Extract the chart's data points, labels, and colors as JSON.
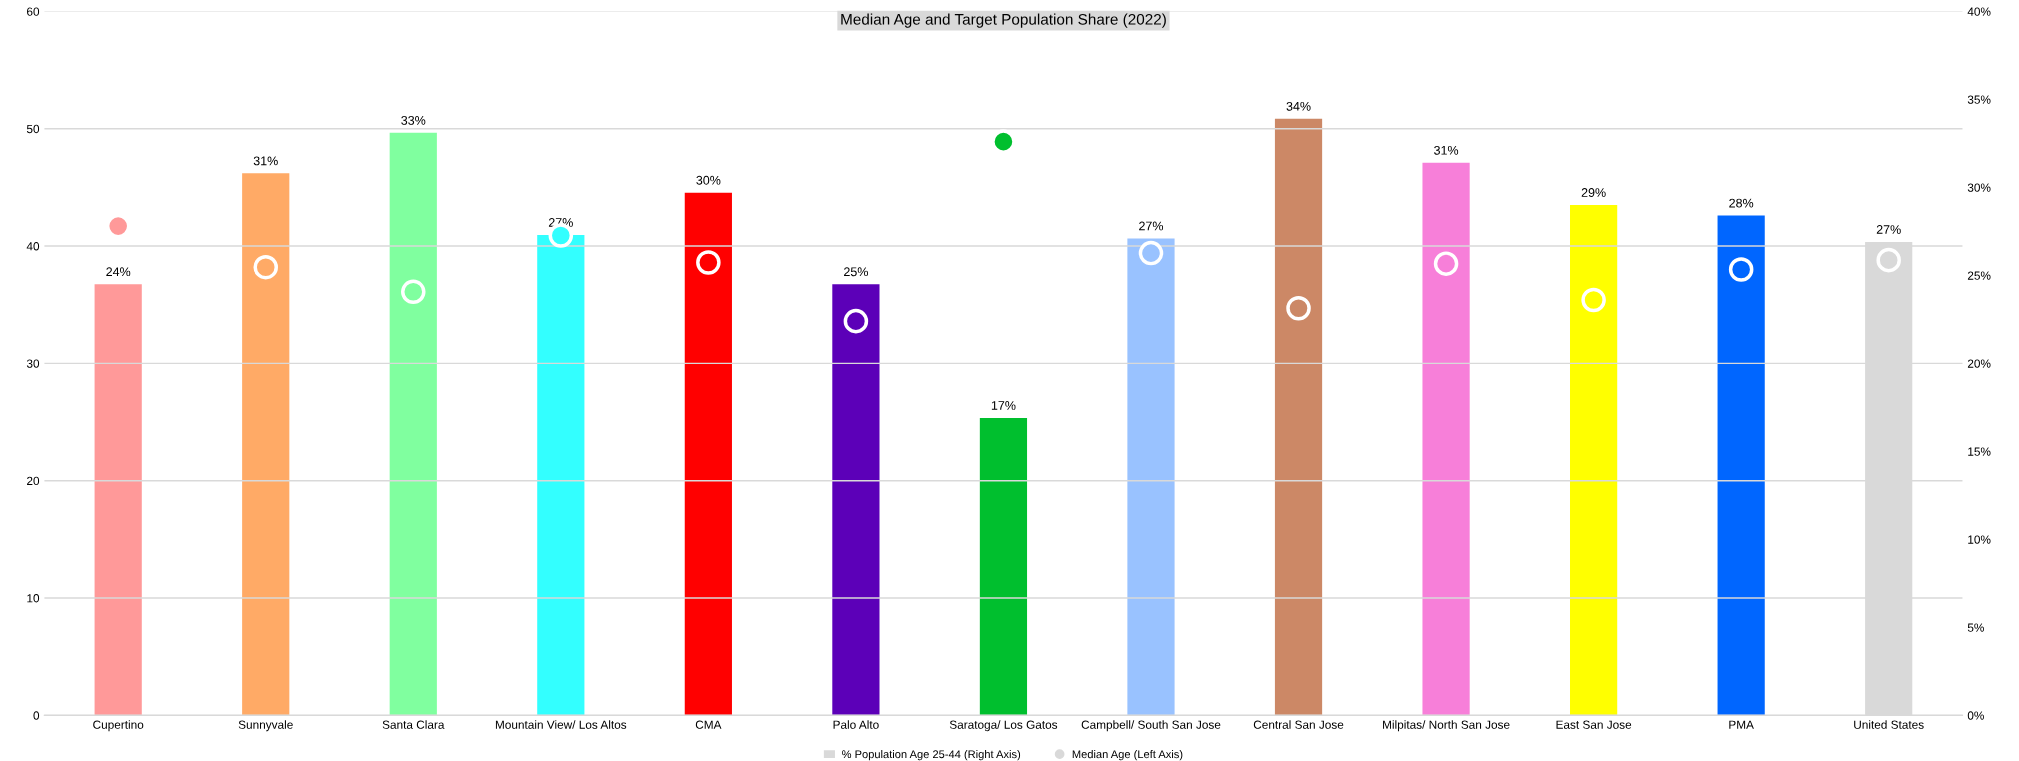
{
  "chart_data": {
    "type": "bar",
    "title": "Median Age and Target Population Share (2022)",
    "categories": [
      "Cupertino",
      "Sunnyvale",
      "Santa Clara",
      "Mountain View/ Los Altos",
      "CMA",
      "Palo Alto",
      "Saratoga/ Los Gatos",
      "Campbell/ South San Jose",
      "Central San Jose",
      "Milpitas/ North San Jose",
      "East San Jose",
      "PMA",
      "United States"
    ],
    "series": [
      {
        "name": "% Population Age 25-44 (Right Axis)",
        "axis": "y2",
        "color": "#d9d9d9",
        "colors": [
          "#ff9999",
          "#ffaa66",
          "#80ff9f",
          "#33ffff",
          "#ff0000",
          "#5c00b8",
          "#00bf2e",
          "#99c2ff",
          "#cc8866",
          "#f77fd9",
          "#ffff00",
          "#0066ff",
          "#d9d9d9"
        ],
        "values": [
          24.5,
          30.8,
          33.1,
          27.3,
          29.7,
          24.5,
          16.9,
          27.1,
          33.9,
          31.4,
          29.0,
          28.4,
          26.9
        ],
        "value_labels": [
          "24%",
          "31%",
          "33%",
          "27%",
          "30%",
          "25%",
          "17%",
          "27%",
          "34%",
          "31%",
          "29%",
          "28%",
          "27%"
        ]
      },
      {
        "name": "Median Age (Left Axis)",
        "type": "scatter",
        "axis": "y",
        "color": "#d9d9d9",
        "colors": [
          "#ff9999",
          "#ffaa66",
          "#80ff9f",
          "#33ffff",
          "#ff0000",
          "#5c00b8",
          "#00bf2e",
          "#99c2ff",
          "#cc8866",
          "#f77fd9",
          "#ffff00",
          "#0066ff",
          "#d9d9d9"
        ],
        "values": [
          41.7,
          38.2,
          36.1,
          40.9,
          38.6,
          33.6,
          48.9,
          39.4,
          34.7,
          38.5,
          35.4,
          38.0,
          38.8
        ]
      }
    ],
    "ylim": [
      0,
      60
    ],
    "yticks": [
      0,
      10,
      20,
      30,
      40,
      50,
      60
    ],
    "y2lim": [
      0,
      40
    ],
    "y2ticks": [
      {
        "value": 0,
        "label": "0%"
      },
      {
        "value": 5,
        "label": "5%"
      },
      {
        "value": 10,
        "label": "10%"
      },
      {
        "value": 15,
        "label": "15%"
      },
      {
        "value": 20,
        "label": "20%"
      },
      {
        "value": 25,
        "label": "25%"
      },
      {
        "value": 30,
        "label": "30%"
      },
      {
        "value": 35,
        "label": "35%"
      },
      {
        "value": 40,
        "label": "40%"
      }
    ],
    "grid": "y",
    "legend": "bottom",
    "marker": "circle"
  }
}
